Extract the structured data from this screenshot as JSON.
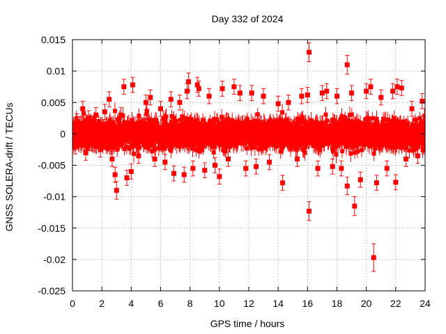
{
  "chart_data": {
    "type": "scatter",
    "title": "Day 332 of 2024",
    "xlabel": "GPS time / hours",
    "ylabel": "GNSS SOLERA-drift / TECUs",
    "xlim": [
      0,
      24
    ],
    "ylim": [
      -0.025,
      0.015
    ],
    "x_ticks": [
      0,
      2,
      4,
      6,
      8,
      10,
      12,
      14,
      16,
      18,
      20,
      22,
      24
    ],
    "x_tick_labels": [
      "0",
      "2",
      "4",
      "6",
      "8",
      "10",
      "12",
      "14",
      "16",
      "18",
      "20",
      "22",
      "24"
    ],
    "y_ticks": [
      -0.025,
      -0.02,
      -0.015,
      -0.01,
      -0.005,
      0,
      0.005,
      0.01,
      0.015
    ],
    "y_tick_labels": [
      "-0.025",
      "-0.02",
      "-0.015",
      "-0.01",
      "-0.005",
      "0",
      "0.005",
      "0.01",
      "0.015"
    ],
    "grid": true,
    "marker": "square",
    "error_bars": true,
    "series": [
      {
        "name": "SOLERA drift",
        "color": "#ff0000",
        "points": [
          {
            "x": 0.1,
            "y": 0.0005,
            "err": 0.0012
          },
          {
            "x": 0.2,
            "y": -0.002,
            "err": 0.0012
          },
          {
            "x": 0.3,
            "y": 0.002,
            "err": 0.0012
          },
          {
            "x": 0.4,
            "y": -0.001,
            "err": 0.0012
          },
          {
            "x": 0.5,
            "y": 0.0015,
            "err": 0.0012
          },
          {
            "x": 0.7,
            "y": 0.004,
            "err": 0.0012
          },
          {
            "x": 0.9,
            "y": -0.003,
            "err": 0.0012
          },
          {
            "x": 1.1,
            "y": 0.0025,
            "err": 0.0012
          },
          {
            "x": 1.3,
            "y": -0.0015,
            "err": 0.0012
          },
          {
            "x": 1.6,
            "y": 0.003,
            "err": 0.0012
          },
          {
            "x": 1.9,
            "y": -0.0025,
            "err": 0.0012
          },
          {
            "x": 2.2,
            "y": 0.0035,
            "err": 0.0012
          },
          {
            "x": 2.5,
            "y": 0.0055,
            "err": 0.0012
          },
          {
            "x": 2.7,
            "y": -0.004,
            "err": 0.0012
          },
          {
            "x": 2.9,
            "y": -0.0065,
            "err": 0.0012
          },
          {
            "x": 3.0,
            "y": -0.009,
            "err": 0.0014
          },
          {
            "x": 3.3,
            "y": 0.003,
            "err": 0.0012
          },
          {
            "x": 3.5,
            "y": 0.0075,
            "err": 0.0012
          },
          {
            "x": 3.7,
            "y": -0.007,
            "err": 0.0012
          },
          {
            "x": 4.0,
            "y": -0.006,
            "err": 0.0012
          },
          {
            "x": 4.1,
            "y": 0.0078,
            "err": 0.0012
          },
          {
            "x": 4.5,
            "y": -0.0035,
            "err": 0.0012
          },
          {
            "x": 5.0,
            "y": 0.005,
            "err": 0.0012
          },
          {
            "x": 5.3,
            "y": 0.0058,
            "err": 0.0012
          },
          {
            "x": 5.6,
            "y": -0.004,
            "err": 0.0012
          },
          {
            "x": 6.0,
            "y": 0.004,
            "err": 0.0012
          },
          {
            "x": 6.3,
            "y": -0.0045,
            "err": 0.0012
          },
          {
            "x": 6.7,
            "y": 0.0055,
            "err": 0.0012
          },
          {
            "x": 6.9,
            "y": -0.0063,
            "err": 0.0012
          },
          {
            "x": 7.3,
            "y": 0.005,
            "err": 0.0012
          },
          {
            "x": 7.6,
            "y": -0.0065,
            "err": 0.0012
          },
          {
            "x": 7.8,
            "y": 0.0068,
            "err": 0.0012
          },
          {
            "x": 7.9,
            "y": 0.0083,
            "err": 0.0014
          },
          {
            "x": 8.2,
            "y": -0.0055,
            "err": 0.0012
          },
          {
            "x": 8.5,
            "y": 0.0078,
            "err": 0.0012
          },
          {
            "x": 8.6,
            "y": 0.0072,
            "err": 0.0012
          },
          {
            "x": 9.0,
            "y": -0.0058,
            "err": 0.0012
          },
          {
            "x": 9.3,
            "y": 0.006,
            "err": 0.0012
          },
          {
            "x": 9.7,
            "y": -0.005,
            "err": 0.0012
          },
          {
            "x": 10.0,
            "y": -0.0068,
            "err": 0.0012
          },
          {
            "x": 10.2,
            "y": 0.0072,
            "err": 0.0012
          },
          {
            "x": 10.6,
            "y": -0.004,
            "err": 0.0012
          },
          {
            "x": 11.0,
            "y": 0.0075,
            "err": 0.0012
          },
          {
            "x": 11.4,
            "y": 0.0065,
            "err": 0.0012
          },
          {
            "x": 11.8,
            "y": -0.0055,
            "err": 0.0012
          },
          {
            "x": 12.2,
            "y": 0.0065,
            "err": 0.0012
          },
          {
            "x": 12.5,
            "y": -0.0052,
            "err": 0.0012
          },
          {
            "x": 13.0,
            "y": 0.006,
            "err": 0.0012
          },
          {
            "x": 13.4,
            "y": -0.0045,
            "err": 0.0012
          },
          {
            "x": 14.0,
            "y": 0.0048,
            "err": 0.0012
          },
          {
            "x": 14.3,
            "y": -0.0078,
            "err": 0.0012
          },
          {
            "x": 14.7,
            "y": 0.005,
            "err": 0.0012
          },
          {
            "x": 15.3,
            "y": -0.004,
            "err": 0.0012
          },
          {
            "x": 15.6,
            "y": 0.006,
            "err": 0.0012
          },
          {
            "x": 16.0,
            "y": 0.0062,
            "err": 0.0012
          },
          {
            "x": 16.1,
            "y": 0.013,
            "err": 0.0015
          },
          {
            "x": 16.1,
            "y": -0.0123,
            "err": 0.0015
          },
          {
            "x": 16.7,
            "y": -0.0055,
            "err": 0.0012
          },
          {
            "x": 17.0,
            "y": 0.0065,
            "err": 0.0012
          },
          {
            "x": 17.3,
            "y": 0.0068,
            "err": 0.0012
          },
          {
            "x": 17.7,
            "y": -0.0052,
            "err": 0.0012
          },
          {
            "x": 18.0,
            "y": 0.006,
            "err": 0.0012
          },
          {
            "x": 18.3,
            "y": -0.0055,
            "err": 0.0012
          },
          {
            "x": 18.7,
            "y": 0.011,
            "err": 0.0015
          },
          {
            "x": 18.7,
            "y": -0.0083,
            "err": 0.0014
          },
          {
            "x": 19.0,
            "y": 0.0065,
            "err": 0.0012
          },
          {
            "x": 19.2,
            "y": -0.0115,
            "err": 0.0015
          },
          {
            "x": 19.6,
            "y": -0.0073,
            "err": 0.0012
          },
          {
            "x": 20.0,
            "y": 0.0068,
            "err": 0.0012
          },
          {
            "x": 20.3,
            "y": 0.0075,
            "err": 0.0012
          },
          {
            "x": 20.5,
            "y": -0.0197,
            "err": 0.0022
          },
          {
            "x": 20.7,
            "y": -0.0078,
            "err": 0.0012
          },
          {
            "x": 21.0,
            "y": 0.0058,
            "err": 0.0012
          },
          {
            "x": 21.4,
            "y": -0.0055,
            "err": 0.0012
          },
          {
            "x": 21.8,
            "y": 0.0068,
            "err": 0.0012
          },
          {
            "x": 22.0,
            "y": -0.0077,
            "err": 0.0012
          },
          {
            "x": 22.1,
            "y": 0.0075,
            "err": 0.0012
          },
          {
            "x": 22.4,
            "y": 0.0073,
            "err": 0.0012
          },
          {
            "x": 22.7,
            "y": -0.004,
            "err": 0.0012
          },
          {
            "x": 23.1,
            "y": 0.004,
            "err": 0.0012
          },
          {
            "x": 23.5,
            "y": -0.0035,
            "err": 0.0012
          },
          {
            "x": 23.8,
            "y": 0.0052,
            "err": 0.0012
          },
          {
            "x": 23.9,
            "y": -0.002,
            "err": 0.0012
          }
        ]
      }
    ]
  }
}
